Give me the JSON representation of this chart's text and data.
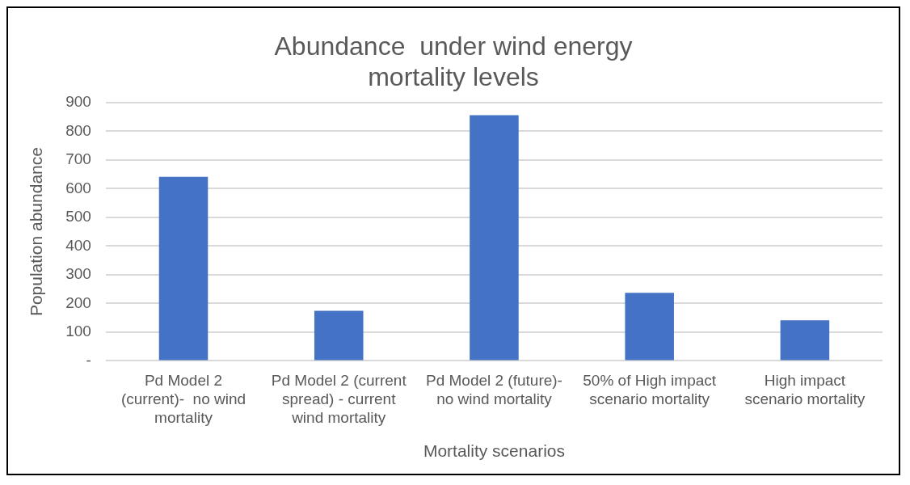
{
  "chart_data": {
    "type": "bar",
    "title": "Abundance  under wind energy mortality levels",
    "xlabel": "Mortality scenarios",
    "ylabel": "Population abundance",
    "categories": [
      "Pd Model 2 (current)-  no wind mortality",
      "Pd Model 2 (current spread) - current wind mortality",
      "Pd Model 2 (future)-  no wind mortality",
      "50% of High impact scenario mortality",
      "High impact scenario mortality"
    ],
    "values": [
      641,
      174,
      856,
      237,
      141
    ],
    "color": "#4472c4",
    "ylim": [
      0,
      900
    ],
    "yticks": [
      {
        "value": 0,
        "label": "-"
      },
      100,
      200,
      300,
      400,
      500,
      600,
      700,
      800,
      900
    ],
    "grid": "y",
    "legend": false
  }
}
